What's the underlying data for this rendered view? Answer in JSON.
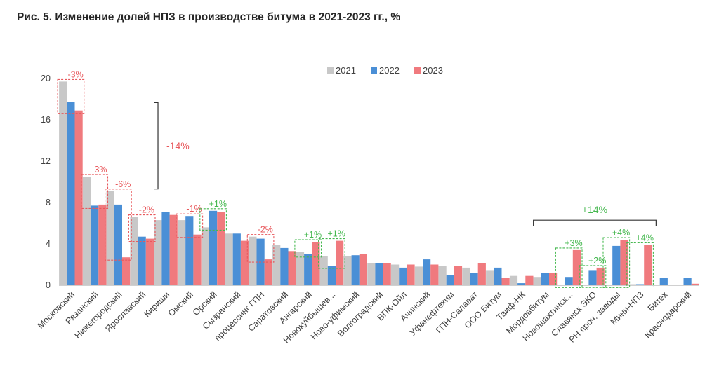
{
  "chart_data": {
    "type": "bar",
    "title": "Рис. 5. Изменение долей НПЗ в производстве битума в 2021-2023 гг., %",
    "xlabel": "",
    "ylabel": "",
    "ylim": [
      0,
      20
    ],
    "yticks": [
      0,
      4,
      8,
      12,
      16,
      20
    ],
    "legend_position": "top",
    "grid": false,
    "categories": [
      "Московский",
      "Рязанский",
      "Нижегородский",
      "Ярославский",
      "Кириши",
      "Омский",
      "Орский",
      "Сызранский",
      "процессинг ГПН",
      "Саратовский",
      "Ангарский",
      "Новокуйбышев...",
      "Ново-уфимский",
      "Волгоградский",
      "ВПК-Ойл",
      "Ачинский",
      "Уфанефтехим",
      "ГПН-Салават",
      "ООО Битум",
      "Таиф-НК",
      "Мордовбитум",
      "Новошахтинск...",
      "Славянск ЭКО",
      "РН проч. заводы",
      "Мини-НПЗ",
      "Битех",
      "Краснодарский"
    ],
    "series": [
      {
        "name": "2021",
        "color": "#c8c8c8",
        "values": [
          19.7,
          10.5,
          9.1,
          6.6,
          6.3,
          6.3,
          5.6,
          5.0,
          4.7,
          3.9,
          3.2,
          2.8,
          2.8,
          2.1,
          2.0,
          1.8,
          1.9,
          1.7,
          1.4,
          0.9,
          0.8,
          0.05,
          0.05,
          0.05,
          0.1,
          0.05,
          0.05
        ]
      },
      {
        "name": "2022",
        "color": "#4a8fd6",
        "values": [
          17.7,
          7.7,
          7.8,
          4.7,
          7.1,
          6.7,
          7.2,
          5.0,
          4.5,
          3.6,
          3.0,
          1.9,
          2.9,
          2.1,
          1.7,
          2.5,
          1.0,
          1.2,
          1.7,
          0.2,
          1.2,
          0.8,
          1.4,
          3.8,
          0.1,
          0.7,
          0.7
        ]
      },
      {
        "name": "2023",
        "color": "#f07a7e",
        "values": [
          16.9,
          7.8,
          2.7,
          4.5,
          6.8,
          4.9,
          7.1,
          4.3,
          2.5,
          3.3,
          4.2,
          4.3,
          3.0,
          2.1,
          2.0,
          2.0,
          1.9,
          2.1,
          0.7,
          0.9,
          1.2,
          3.4,
          1.7,
          4.4,
          3.9,
          0.0,
          0.15
        ]
      }
    ],
    "annotations": [
      {
        "text": "-3%",
        "color": "#e8585c",
        "category": 0
      },
      {
        "text": "-3%",
        "color": "#e8585c",
        "category": 1
      },
      {
        "text": "-6%",
        "color": "#e8585c",
        "category": 2
      },
      {
        "text": "-2%",
        "color": "#e8585c",
        "category": 3
      },
      {
        "text": "-1%",
        "color": "#e8585c",
        "category": 5
      },
      {
        "text": "+1%",
        "color": "#45b84f",
        "category": 6
      },
      {
        "text": "-2%",
        "color": "#e8585c",
        "category": 8
      },
      {
        "text": "+1%",
        "color": "#45b84f",
        "category": 10
      },
      {
        "text": "+1%",
        "color": "#45b84f",
        "category": 11
      },
      {
        "text": "+3%",
        "color": "#45b84f",
        "category": 21
      },
      {
        "text": "+2%",
        "color": "#45b84f",
        "category": 22
      },
      {
        "text": "+4%",
        "color": "#45b84f",
        "category": 23
      },
      {
        "text": "+4%",
        "color": "#45b84f",
        "category": 24
      }
    ],
    "group_annotations": [
      {
        "text": "-14%",
        "color": "#e8585c",
        "from": 0,
        "to": 3
      },
      {
        "text": "+14%",
        "color": "#45b84f",
        "from": 20,
        "to": 24
      }
    ]
  }
}
